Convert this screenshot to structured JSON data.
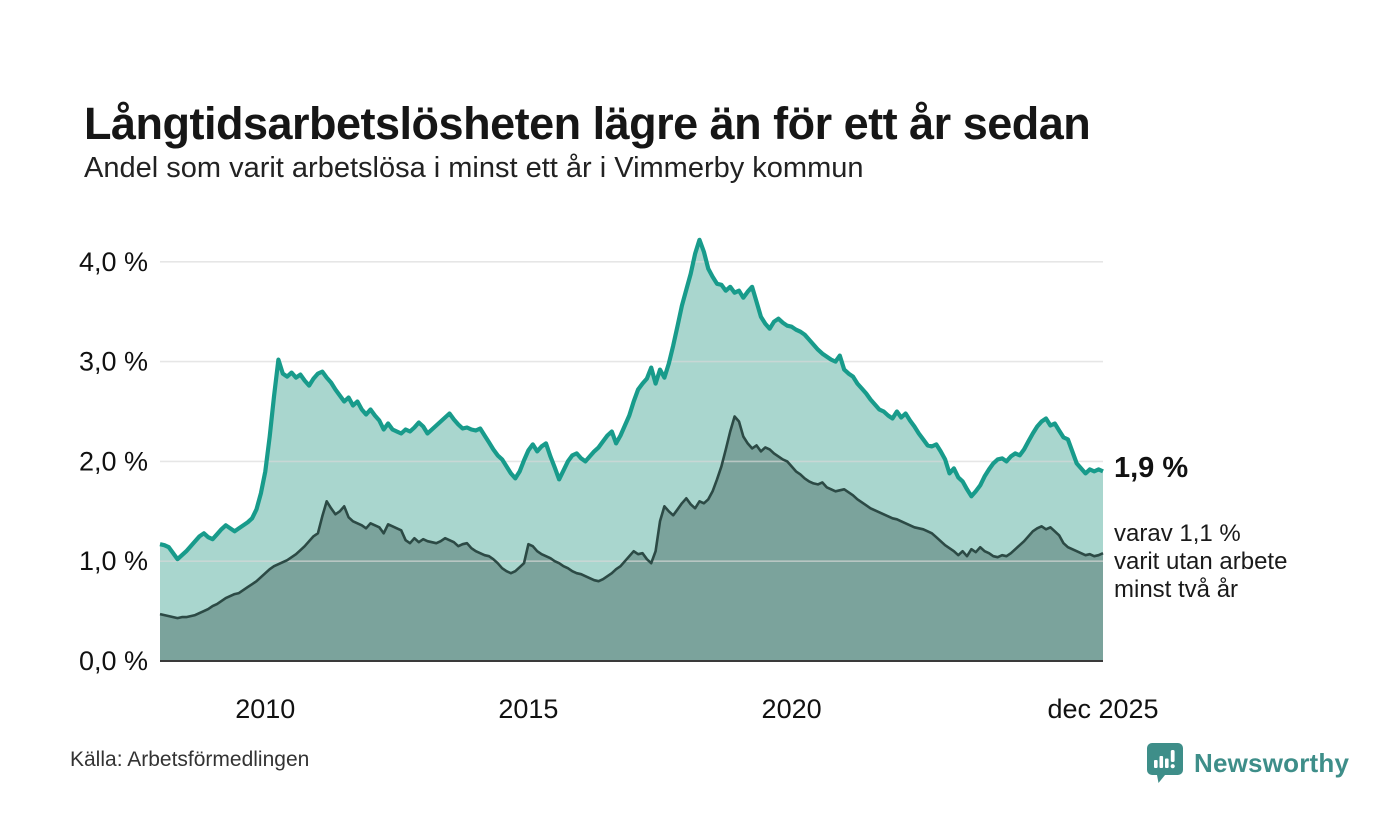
{
  "header": {
    "title": "Långtidsarbetslösheten lägre än för ett år sedan",
    "subtitle": "Andel som varit arbetslösa i minst ett år i Vimmerby kommun"
  },
  "chart_data": {
    "type": "area",
    "title": "Långtidsarbetslösheten lägre än för ett år sedan",
    "subtitle": "Andel som varit arbetslösa i minst ett år i Vimmerby kommun",
    "unit": "%",
    "x_start": "2008-01",
    "x_end": "2025-12",
    "x_frequency": "monthly",
    "ylim": [
      0,
      4.35
    ],
    "grid": "horizontal",
    "y_ticks": [
      {
        "value": 0,
        "label": "0,0 %"
      },
      {
        "value": 1,
        "label": "1,0 %"
      },
      {
        "value": 2,
        "label": "2,0 %"
      },
      {
        "value": 3,
        "label": "3,0 %"
      },
      {
        "value": 4,
        "label": "4,0 %"
      }
    ],
    "x_ticks": [
      {
        "month_index": 24,
        "label": "2010"
      },
      {
        "month_index": 84,
        "label": "2015"
      },
      {
        "month_index": 144,
        "label": "2020"
      },
      {
        "month_index": 215,
        "label": "dec 2025"
      }
    ],
    "colors": {
      "line_primary": "#189b8b",
      "fill_primary": "#a9d6ce",
      "line_secondary": "#2c4a45",
      "fill_secondary": "#7ba39c",
      "grid": "#d9d9d9",
      "baseline": "#3a3a3a",
      "tick_text": "#111111"
    },
    "series": [
      {
        "name": "Andel som varit arbetslösa minst ett år",
        "values": [
          1.17,
          1.16,
          1.14,
          1.08,
          1.02,
          1.06,
          1.1,
          1.15,
          1.2,
          1.25,
          1.28,
          1.24,
          1.22,
          1.27,
          1.32,
          1.36,
          1.33,
          1.3,
          1.33,
          1.36,
          1.39,
          1.43,
          1.52,
          1.68,
          1.9,
          2.25,
          2.65,
          3.02,
          2.88,
          2.85,
          2.89,
          2.84,
          2.87,
          2.81,
          2.76,
          2.83,
          2.88,
          2.9,
          2.84,
          2.79,
          2.72,
          2.66,
          2.6,
          2.64,
          2.56,
          2.6,
          2.52,
          2.47,
          2.52,
          2.46,
          2.41,
          2.32,
          2.38,
          2.32,
          2.3,
          2.28,
          2.32,
          2.3,
          2.34,
          2.39,
          2.35,
          2.28,
          2.32,
          2.36,
          2.4,
          2.44,
          2.48,
          2.42,
          2.37,
          2.33,
          2.34,
          2.32,
          2.31,
          2.33,
          2.26,
          2.19,
          2.12,
          2.06,
          2.02,
          1.95,
          1.88,
          1.83,
          1.9,
          2.01,
          2.11,
          2.17,
          2.1,
          2.15,
          2.18,
          2.05,
          1.94,
          1.82,
          1.91,
          2.0,
          2.06,
          2.08,
          2.03,
          2.0,
          2.05,
          2.1,
          2.14,
          2.2,
          2.26,
          2.3,
          2.18,
          2.26,
          2.36,
          2.46,
          2.6,
          2.72,
          2.78,
          2.83,
          2.94,
          2.78,
          2.92,
          2.84,
          2.98,
          3.16,
          3.36,
          3.56,
          3.72,
          3.88,
          4.08,
          4.22,
          4.1,
          3.93,
          3.85,
          3.78,
          3.77,
          3.71,
          3.75,
          3.69,
          3.71,
          3.64,
          3.7,
          3.75,
          3.6,
          3.45,
          3.38,
          3.33,
          3.4,
          3.43,
          3.39,
          3.36,
          3.35,
          3.32,
          3.3,
          3.27,
          3.22,
          3.17,
          3.12,
          3.08,
          3.05,
          3.02,
          3.0,
          3.06,
          2.92,
          2.88,
          2.85,
          2.78,
          2.73,
          2.68,
          2.62,
          2.57,
          2.52,
          2.5,
          2.46,
          2.43,
          2.5,
          2.44,
          2.48,
          2.41,
          2.35,
          2.28,
          2.22,
          2.16,
          2.15,
          2.17,
          2.1,
          2.02,
          1.88,
          1.93,
          1.84,
          1.8,
          1.72,
          1.65,
          1.7,
          1.76,
          1.85,
          1.92,
          1.98,
          2.02,
          2.03,
          2.0,
          2.05,
          2.08,
          2.06,
          2.12,
          2.2,
          2.28,
          2.35,
          2.4,
          2.43,
          2.36,
          2.38,
          2.31,
          2.24,
          2.22,
          2.1,
          1.98,
          1.93,
          1.88,
          1.92,
          1.9,
          1.92,
          1.9
        ]
      },
      {
        "name": "varav utan arbete minst två år",
        "values": [
          0.47,
          0.46,
          0.45,
          0.44,
          0.43,
          0.44,
          0.44,
          0.45,
          0.46,
          0.48,
          0.5,
          0.52,
          0.55,
          0.57,
          0.6,
          0.63,
          0.65,
          0.67,
          0.68,
          0.71,
          0.74,
          0.77,
          0.8,
          0.84,
          0.88,
          0.92,
          0.95,
          0.97,
          0.99,
          1.01,
          1.04,
          1.07,
          1.11,
          1.15,
          1.2,
          1.25,
          1.28,
          1.45,
          1.6,
          1.53,
          1.47,
          1.5,
          1.55,
          1.44,
          1.4,
          1.38,
          1.36,
          1.33,
          1.38,
          1.36,
          1.34,
          1.28,
          1.37,
          1.35,
          1.33,
          1.31,
          1.21,
          1.18,
          1.23,
          1.19,
          1.22,
          1.2,
          1.19,
          1.18,
          1.2,
          1.23,
          1.21,
          1.19,
          1.15,
          1.17,
          1.18,
          1.13,
          1.1,
          1.08,
          1.06,
          1.05,
          1.02,
          0.98,
          0.93,
          0.9,
          0.88,
          0.9,
          0.94,
          0.98,
          1.17,
          1.15,
          1.1,
          1.07,
          1.05,
          1.03,
          1.0,
          0.98,
          0.95,
          0.93,
          0.9,
          0.88,
          0.87,
          0.85,
          0.83,
          0.81,
          0.8,
          0.82,
          0.85,
          0.88,
          0.92,
          0.95,
          1.0,
          1.05,
          1.1,
          1.07,
          1.08,
          1.02,
          0.98,
          1.1,
          1.4,
          1.55,
          1.5,
          1.46,
          1.52,
          1.58,
          1.63,
          1.57,
          1.53,
          1.6,
          1.58,
          1.62,
          1.7,
          1.82,
          1.95,
          2.12,
          2.3,
          2.45,
          2.4,
          2.25,
          2.18,
          2.13,
          2.16,
          2.1,
          2.14,
          2.12,
          2.08,
          2.05,
          2.02,
          2.0,
          1.95,
          1.9,
          1.87,
          1.83,
          1.8,
          1.78,
          1.77,
          1.79,
          1.74,
          1.72,
          1.7,
          1.71,
          1.72,
          1.69,
          1.66,
          1.62,
          1.59,
          1.56,
          1.53,
          1.51,
          1.49,
          1.47,
          1.45,
          1.43,
          1.42,
          1.4,
          1.38,
          1.36,
          1.34,
          1.33,
          1.32,
          1.3,
          1.28,
          1.24,
          1.2,
          1.16,
          1.13,
          1.1,
          1.06,
          1.1,
          1.05,
          1.12,
          1.09,
          1.14,
          1.1,
          1.08,
          1.05,
          1.04,
          1.06,
          1.05,
          1.08,
          1.12,
          1.16,
          1.2,
          1.25,
          1.3,
          1.33,
          1.35,
          1.32,
          1.34,
          1.3,
          1.26,
          1.18,
          1.14,
          1.12,
          1.1,
          1.08,
          1.06,
          1.07,
          1.05,
          1.06,
          1.08
        ]
      }
    ],
    "end_labels": {
      "primary": "1,9 %",
      "secondary_lines": [
        "varav 1,1 %",
        "varit utan arbete",
        "minst två år"
      ]
    }
  },
  "footer": {
    "source": "Källa: Arbetsförmedlingen",
    "brand_label": "Newsworthy",
    "brand_color": "#3e8e89"
  }
}
